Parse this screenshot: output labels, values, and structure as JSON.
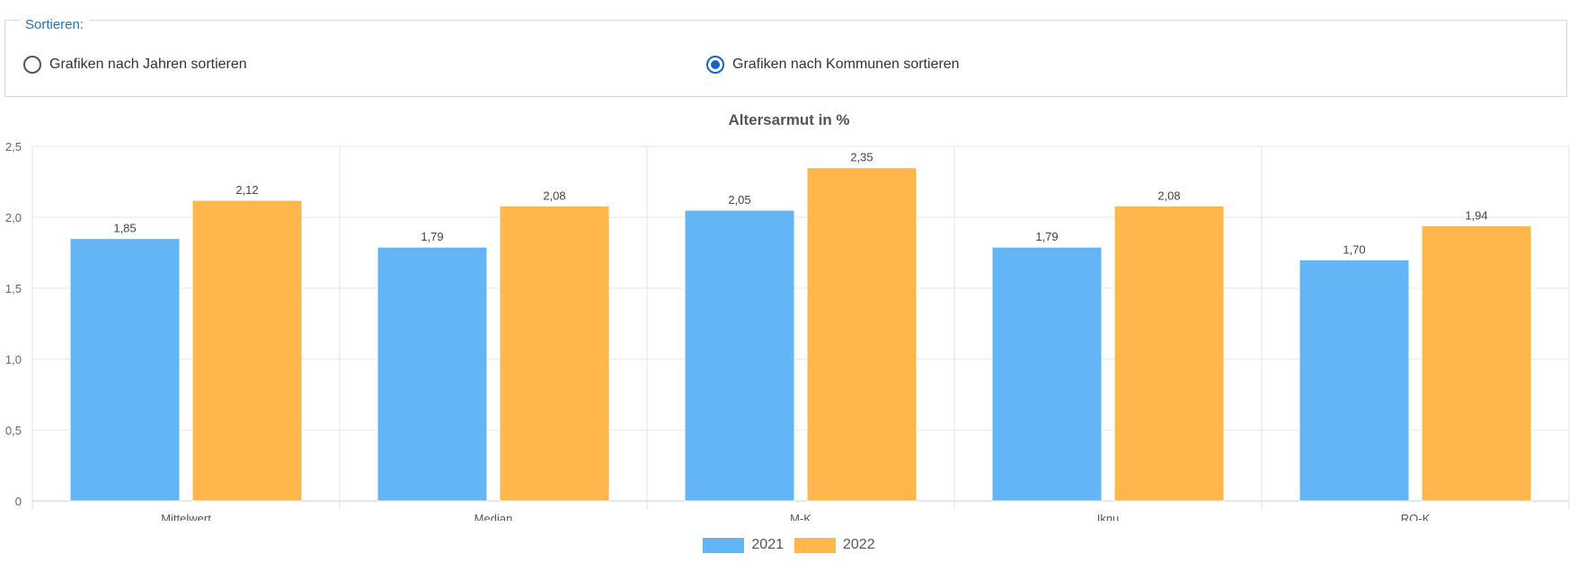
{
  "sort": {
    "legend": "Sortieren:",
    "options": [
      {
        "label": "Grafiken nach Jahren sortieren",
        "checked": false
      },
      {
        "label": "Grafiken nach Kommunen sortieren",
        "checked": true
      }
    ]
  },
  "colors": {
    "series_2021": "#64b5f6",
    "series_2022": "#ffb74d",
    "radio_accent": "#1565c0",
    "legend_accent": "#1e73be"
  },
  "chart_data": {
    "type": "bar",
    "title": "Altersarmut in %",
    "categories": [
      "Mittelwert",
      "Median",
      "M-K",
      "Iknu",
      "RO-K"
    ],
    "series": [
      {
        "name": "2021",
        "values": [
          1.85,
          1.79,
          2.05,
          1.79,
          1.7
        ],
        "labels": [
          "1,85",
          "1,79",
          "2,05",
          "1,79",
          "1,70"
        ]
      },
      {
        "name": "2022",
        "values": [
          2.12,
          2.08,
          2.35,
          2.08,
          1.94
        ],
        "labels": [
          "2,12",
          "2,08",
          "2,35",
          "2,08",
          "1,94"
        ]
      }
    ],
    "ylim": [
      0,
      2.5
    ],
    "yticks": [
      0,
      0.5,
      1.0,
      1.5,
      2.0,
      2.5
    ],
    "ytick_labels": [
      "0",
      "0,5",
      "1,0",
      "1,5",
      "2,0",
      "2,5"
    ],
    "grid": true,
    "legend_position": "bottom"
  }
}
